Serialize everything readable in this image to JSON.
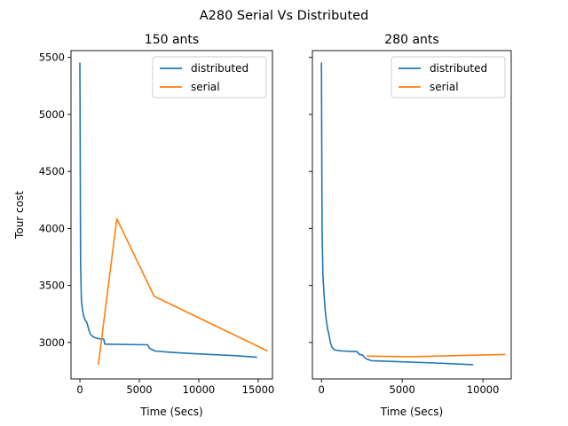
{
  "figure": {
    "title": "A280 Serial Vs Distributed"
  },
  "chart_data": [
    {
      "type": "line",
      "title": "150 ants",
      "xlabel": "Time (Secs)",
      "ylabel": "Tour cost",
      "xlim": [
        -750,
        16200
      ],
      "ylim": [
        2680,
        5560
      ],
      "xticks": [
        0,
        5000,
        10000,
        15000
      ],
      "xtick_labels": [
        "0",
        "5000",
        "10000",
        "15000"
      ],
      "yticks": [
        3000,
        3500,
        4000,
        4500,
        5000,
        5500
      ],
      "ytick_labels": [
        "3000",
        "3500",
        "4000",
        "4500",
        "5000",
        "5500"
      ],
      "show_ytick_labels": true,
      "grid": false,
      "legend": "top-right",
      "series": [
        {
          "name": "distributed",
          "color": "#1f77b4",
          "x": [
            0,
            60,
            120,
            200,
            300,
            420,
            600,
            780,
            900,
            1000,
            1200,
            1500,
            1800,
            2000,
            2100,
            2200,
            5700,
            5850,
            6300,
            7500,
            9000,
            11000,
            13000,
            14900
          ],
          "y": [
            5455,
            3700,
            3380,
            3300,
            3240,
            3200,
            3170,
            3100,
            3070,
            3060,
            3045,
            3035,
            3030,
            3030,
            2985,
            2985,
            2980,
            2950,
            2925,
            2915,
            2905,
            2895,
            2885,
            2870
          ]
        },
        {
          "name": "serial",
          "color": "#ff7f0e",
          "x": [
            1550,
            3100,
            6250,
            15800
          ],
          "y": [
            2805,
            4085,
            3405,
            2925
          ]
        }
      ]
    },
    {
      "type": "line",
      "title": "280 ants",
      "xlabel": "Time (Secs)",
      "ylabel": "",
      "xlim": [
        -560,
        11750
      ],
      "ylim": [
        2680,
        5560
      ],
      "xticks": [
        0,
        5000,
        10000
      ],
      "xtick_labels": [
        "0",
        "5000",
        "10000"
      ],
      "yticks": [
        3000,
        3500,
        4000,
        4500,
        5000,
        5500
      ],
      "ytick_labels": [
        "",
        "",
        "",
        "",
        "",
        ""
      ],
      "show_ytick_labels": false,
      "grid": false,
      "legend": "top-right",
      "series": [
        {
          "name": "distributed",
          "color": "#1f77b4",
          "x": [
            0,
            40,
            90,
            150,
            220,
            300,
            380,
            450,
            550,
            650,
            800,
            1000,
            1300,
            2200,
            2350,
            2550,
            2650,
            2800,
            3100,
            5000,
            7000,
            9400
          ],
          "y": [
            5455,
            4000,
            3600,
            3450,
            3300,
            3200,
            3120,
            3080,
            3000,
            2960,
            2935,
            2930,
            2925,
            2920,
            2895,
            2890,
            2870,
            2855,
            2840,
            2830,
            2820,
            2805
          ]
        },
        {
          "name": "serial",
          "color": "#ff7f0e",
          "x": [
            2800,
            5600,
            11400
          ],
          "y": [
            2880,
            2875,
            2895
          ]
        }
      ]
    }
  ]
}
